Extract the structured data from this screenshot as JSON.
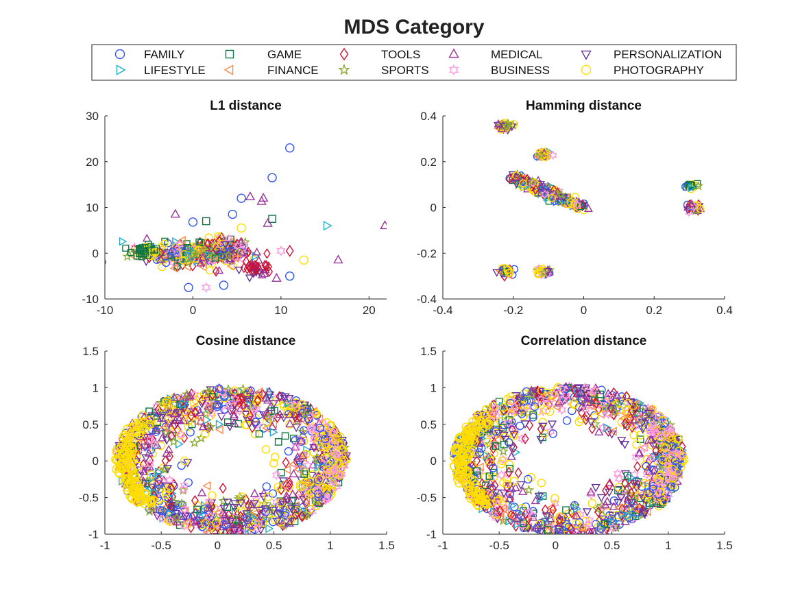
{
  "figure_title": "MDS Category",
  "legend": {
    "placement": "top-center",
    "columns": 5,
    "entries": [
      {
        "name": "FAMILY",
        "marker": "circle",
        "color": "#3355ee"
      },
      {
        "name": "LIFESTYLE",
        "marker": "triangle-right",
        "color": "#22aacc"
      },
      {
        "name": "GAME",
        "marker": "square",
        "color": "#117744"
      },
      {
        "name": "FINANCE",
        "marker": "triangle-left",
        "color": "#ff8844"
      },
      {
        "name": "TOOLS",
        "marker": "diamond",
        "color": "#cc1133"
      },
      {
        "name": "SPORTS",
        "marker": "pentagram",
        "color": "#88aa33"
      },
      {
        "name": "MEDICAL",
        "marker": "triangle-up",
        "color": "#993399"
      },
      {
        "name": "BUSINESS",
        "marker": "hexagram",
        "color": "#ff99dd"
      },
      {
        "name": "PERSONALIZATION",
        "marker": "triangle-down",
        "color": "#663399"
      },
      {
        "name": "PHOTOGRAPHY",
        "marker": "circle",
        "color": "#ffdd00"
      }
    ]
  },
  "chart_data": [
    {
      "type": "scatter",
      "title": "L1 distance",
      "xlim": [
        -10,
        22
      ],
      "ylim": [
        -10,
        30
      ],
      "xticks": [
        -10,
        0,
        10,
        20
      ],
      "yticks": [
        -10,
        0,
        10,
        20,
        30
      ],
      "tick_labels_x": [
        "-10",
        "0",
        "10",
        "20"
      ],
      "tick_labels_y": [
        "-10",
        "0",
        "10",
        "20",
        "30"
      ],
      "clusters": [
        {
          "cx": -1,
          "cy": 0,
          "rx": 5.5,
          "ry": 2.5,
          "n": 260,
          "mix": [
            1,
            1,
            1,
            1,
            1,
            1,
            1,
            1,
            1,
            3
          ]
        },
        {
          "cx": 3.5,
          "cy": 0.5,
          "rx": 3,
          "ry": 3,
          "n": 110,
          "mix": [
            1,
            1,
            1,
            1,
            2,
            1,
            2,
            2,
            1,
            2
          ]
        },
        {
          "cx": -5.5,
          "cy": 0.5,
          "rx": 1.5,
          "ry": 1.2,
          "n": 40,
          "mix": [
            0,
            0,
            4,
            0,
            0,
            0,
            0,
            0,
            0,
            1
          ]
        },
        {
          "cx": 7,
          "cy": -3,
          "rx": 2,
          "ry": 2,
          "n": 40,
          "mix": [
            0,
            0,
            0,
            0,
            3,
            0,
            1,
            0,
            1,
            0
          ]
        }
      ],
      "outliers": [
        {
          "x": 11,
          "y": 23,
          "series": "FAMILY"
        },
        {
          "x": 9,
          "y": 16.5,
          "series": "FAMILY"
        },
        {
          "x": 5.5,
          "y": 12,
          "series": "FAMILY"
        },
        {
          "x": 6.5,
          "y": 12.3,
          "series": "MEDICAL"
        },
        {
          "x": 8,
          "y": 12,
          "series": "MEDICAL"
        },
        {
          "x": 7.8,
          "y": 11.3,
          "series": "MEDICAL"
        },
        {
          "x": 15.2,
          "y": 6,
          "series": "LIFESTYLE"
        },
        {
          "x": 21.8,
          "y": 6,
          "series": "MEDICAL"
        },
        {
          "x": 16.5,
          "y": -1.5,
          "series": "MEDICAL"
        },
        {
          "x": 12.6,
          "y": -1.5,
          "series": "PHOTOGRAPHY"
        },
        {
          "x": 11,
          "y": -5,
          "series": "FAMILY"
        },
        {
          "x": 9,
          "y": 7.5,
          "series": "GAME"
        },
        {
          "x": -2,
          "y": 8.5,
          "series": "MEDICAL"
        },
        {
          "x": 10,
          "y": 0.5,
          "series": "BUSINESS"
        },
        {
          "x": 11,
          "y": 0.5,
          "series": "TOOLS"
        },
        {
          "x": 8.5,
          "y": 6.5,
          "series": "MEDICAL"
        },
        {
          "x": 4.5,
          "y": 8.5,
          "series": "FAMILY"
        },
        {
          "x": 0,
          "y": 6.8,
          "series": "FAMILY"
        },
        {
          "x": 1.5,
          "y": 7,
          "series": "GAME"
        },
        {
          "x": 5.5,
          "y": 5.5,
          "series": "PHOTOGRAPHY"
        },
        {
          "x": -0.5,
          "y": -7.5,
          "series": "FAMILY"
        },
        {
          "x": 1.5,
          "y": -7.5,
          "series": "BUSINESS"
        },
        {
          "x": 3.5,
          "y": -7,
          "series": "FAMILY"
        },
        {
          "x": 9.5,
          "y": -5.5,
          "series": "MEDICAL"
        }
      ]
    },
    {
      "type": "scatter",
      "title": "Hamming distance",
      "xlim": [
        -0.4,
        0.4
      ],
      "ylim": [
        -0.4,
        0.4
      ],
      "xticks": [
        -0.4,
        -0.2,
        0,
        0.2,
        0.4
      ],
      "yticks": [
        -0.4,
        -0.2,
        0,
        0.2,
        0.4
      ],
      "tick_labels_x": [
        "-0.4",
        "-0.2",
        "0",
        "0.2",
        "0.4"
      ],
      "tick_labels_y": [
        "-0.4",
        "-0.2",
        "0",
        "0.2",
        "0.4"
      ],
      "clusters": [
        {
          "cx": -0.23,
          "cy": 0.355,
          "rx": 0.025,
          "ry": 0.015,
          "n": 40,
          "mix": [
            1,
            0,
            0,
            1,
            0,
            1,
            2,
            0,
            2,
            2
          ]
        },
        {
          "cx": -0.115,
          "cy": 0.23,
          "rx": 0.02,
          "ry": 0.015,
          "n": 40,
          "mix": [
            1,
            1,
            0,
            1,
            0,
            1,
            1,
            1,
            0,
            3
          ]
        },
        {
          "cx": 0.305,
          "cy": 0.095,
          "rx": 0.02,
          "ry": 0.01,
          "n": 20,
          "mix": [
            1,
            1,
            3,
            0,
            0,
            1,
            0,
            0,
            0,
            1
          ]
        },
        {
          "cx": 0.31,
          "cy": 0.005,
          "rx": 0.02,
          "ry": 0.015,
          "n": 35,
          "mix": [
            1,
            0,
            1,
            0,
            1,
            1,
            1,
            1,
            1,
            3
          ]
        },
        {
          "cx": -0.22,
          "cy": -0.28,
          "rx": 0.03,
          "ry": 0.015,
          "n": 35,
          "mix": [
            1,
            0,
            2,
            1,
            1,
            1,
            1,
            0,
            1,
            2
          ]
        },
        {
          "cx": -0.115,
          "cy": -0.28,
          "rx": 0.02,
          "ry": 0.015,
          "n": 35,
          "mix": [
            1,
            1,
            0,
            0,
            0,
            1,
            1,
            1,
            1,
            2
          ]
        }
      ],
      "band": {
        "x0": -0.2,
        "y0": 0.135,
        "x1": -0.005,
        "y1": 0.0,
        "n": 220,
        "spread": 0.018,
        "mix": [
          1,
          1,
          1,
          1,
          1,
          1,
          2,
          1,
          2,
          3
        ]
      },
      "outliers": []
    },
    {
      "type": "scatter",
      "title": "Cosine distance",
      "xlim": [
        -1,
        1.5
      ],
      "ylim": [
        -1,
        1.5
      ],
      "xticks": [
        -1,
        -0.5,
        0,
        0.5,
        1,
        1.5
      ],
      "yticks": [
        -1,
        -0.5,
        0,
        0.5,
        1,
        1.5
      ],
      "tick_labels_x": [
        "-1",
        "-0.5",
        "0",
        "0.5",
        "1",
        "1.5"
      ],
      "tick_labels_y": [
        "-1",
        "-0.5",
        "0",
        "0.5",
        "1",
        "1.5"
      ],
      "ellipse": {
        "cx": 0.12,
        "cy": 0,
        "rx": 1.03,
        "ry": 1.0,
        "n": 1100,
        "hole": 0.25,
        "mix": [
          2,
          1,
          1,
          1,
          2,
          1,
          2,
          2,
          2,
          3
        ]
      },
      "outliers": []
    },
    {
      "type": "scatter",
      "title": "Correlation distance",
      "xlim": [
        -1,
        1.5
      ],
      "ylim": [
        -1,
        1.5
      ],
      "xticks": [
        -1,
        -0.5,
        0,
        0.5,
        1,
        1.5
      ],
      "yticks": [
        -1,
        -0.5,
        0,
        0.5,
        1,
        1.5
      ],
      "tick_labels_x": [
        "-1",
        "-0.5",
        "0",
        "0.5",
        "1",
        "1.5"
      ],
      "tick_labels_y": [
        "-1",
        "-0.5",
        "0",
        "0.5",
        "1",
        "1.5"
      ],
      "ellipse": {
        "cx": 0.12,
        "cy": 0,
        "rx": 1.03,
        "ry": 1.02,
        "n": 1100,
        "hole": 0.3,
        "mix": [
          2,
          1,
          1,
          1,
          2,
          1,
          2,
          2,
          2,
          3
        ]
      },
      "outliers": []
    }
  ]
}
